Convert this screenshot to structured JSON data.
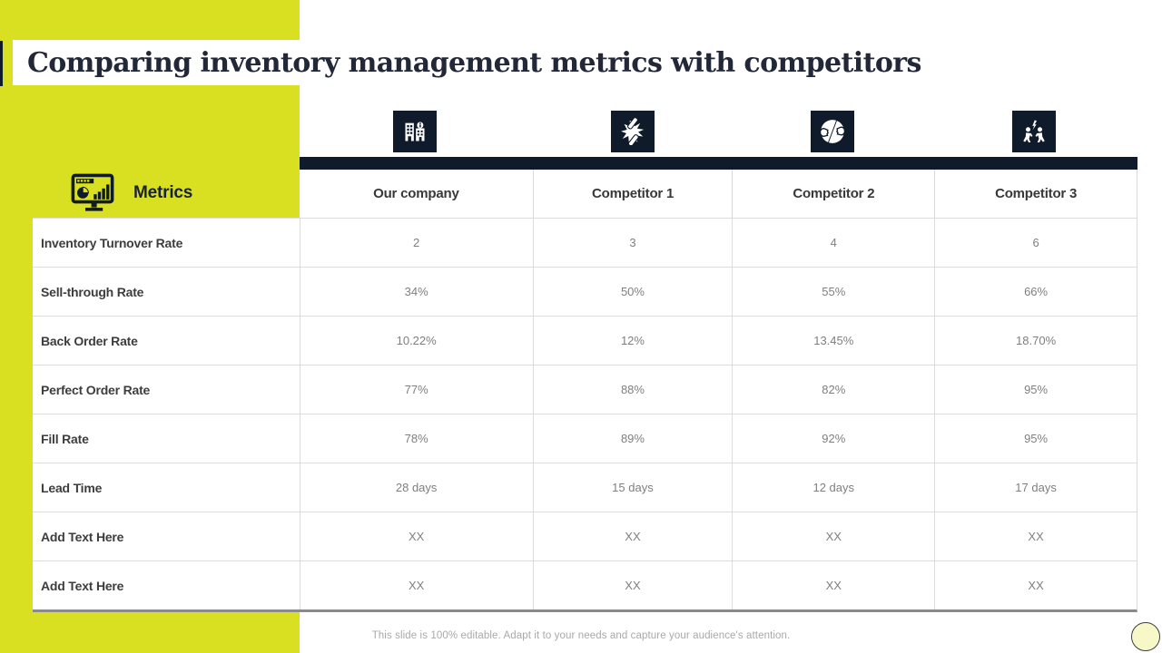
{
  "slide": {
    "title": "Comparing inventory management metrics with competitors",
    "footer": "This slide is 100% editable. Adapt it to your needs and capture your audience's attention."
  },
  "metrics_panel": {
    "label": "Metrics",
    "icon": "dashboard-charts-icon"
  },
  "table": {
    "columns": [
      {
        "label": "Our company",
        "icon": "company-buildings-icon"
      },
      {
        "label": "Competitor 1",
        "icon": "impact-starburst-icon"
      },
      {
        "label": "Competitor 2",
        "icon": "versus-faces-icon"
      },
      {
        "label": "Competitor 3",
        "icon": "rivalry-people-icon"
      }
    ],
    "rows": [
      {
        "label": "Inventory Turnover Rate",
        "values": [
          "2",
          "3",
          "4",
          "6"
        ]
      },
      {
        "label": "Sell-through Rate",
        "values": [
          "34%",
          "50%",
          "55%",
          "66%"
        ]
      },
      {
        "label": "Back Order Rate",
        "values": [
          "10.22%",
          "12%",
          "13.45%",
          "18.70%"
        ]
      },
      {
        "label": "Perfect Order Rate",
        "values": [
          "77%",
          "88%",
          "82%",
          "95%"
        ]
      },
      {
        "label": "Fill Rate",
        "values": [
          "78%",
          "89%",
          "92%",
          "95%"
        ]
      },
      {
        "label": "Lead Time",
        "values": [
          "28 days",
          "15 days",
          "12 days",
          "17 days"
        ]
      },
      {
        "label": "Add Text Here",
        "values": [
          "XX",
          "XX",
          "XX",
          "XX"
        ]
      },
      {
        "label": "Add Text Here",
        "values": [
          "XX",
          "XX",
          "XX",
          "XX"
        ]
      }
    ]
  },
  "colors": {
    "accent_chartreuse": "#d9e021",
    "navy": "#0f1a2b",
    "value_gray": "#7f7f7f",
    "label_gray": "#3d3d3d",
    "border_light": "#dcdcdc",
    "border_dark": "#8a8a8a",
    "circle_fill": "#f7f7c8"
  }
}
